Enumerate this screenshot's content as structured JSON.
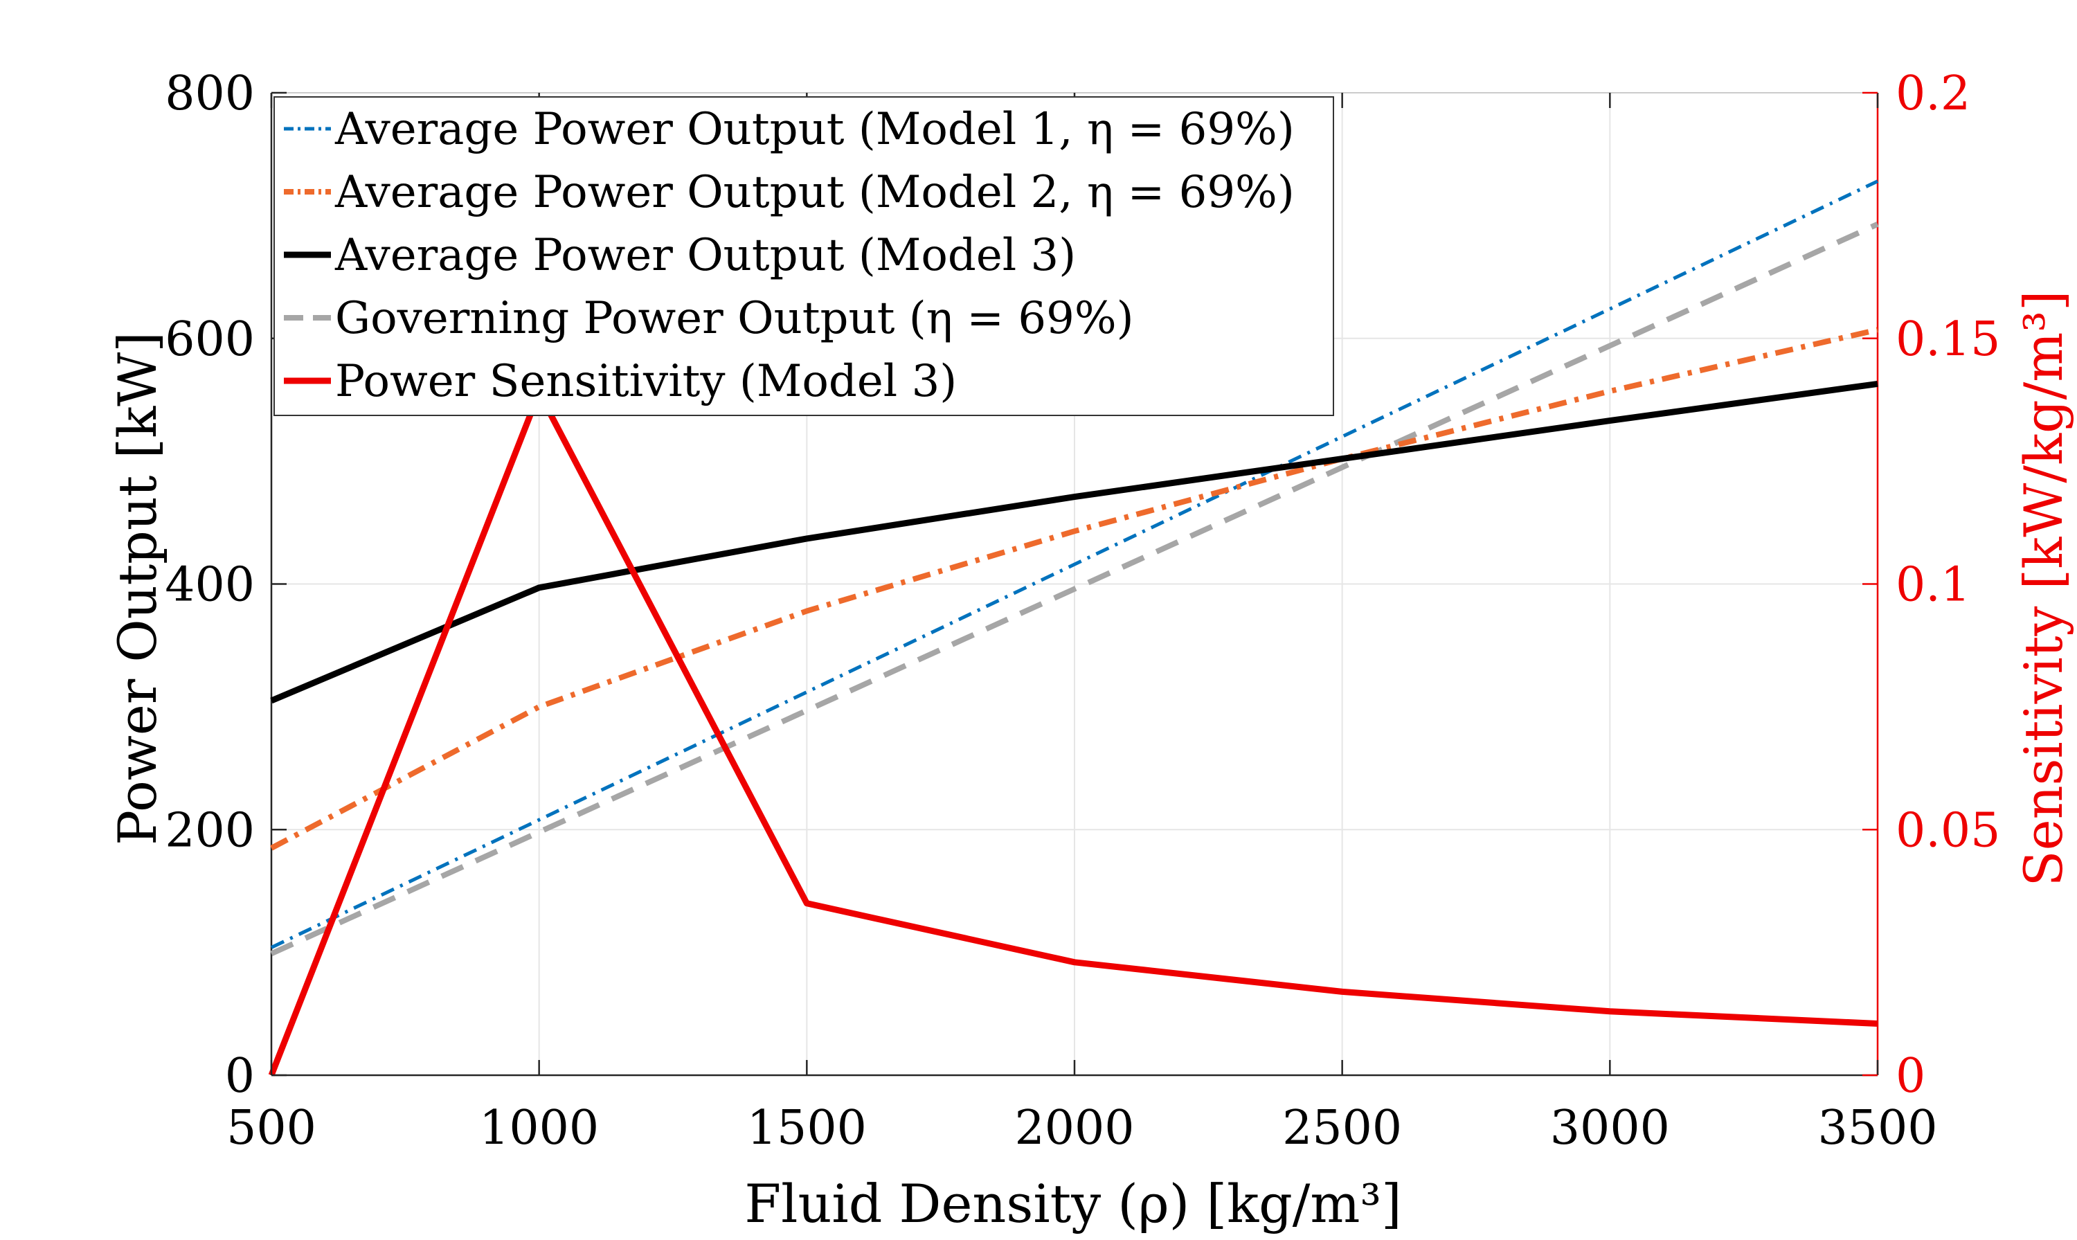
{
  "chart_data": {
    "type": "line",
    "xlabel": "Fluid Density (ρ) [kg/m³]",
    "ylabel_left": "Power Output [kW]",
    "ylabel_right": "Sensitivity [kW/kg/m³]",
    "xlim": [
      500,
      3500
    ],
    "ylim_left": [
      0,
      800
    ],
    "ylim_right": [
      0,
      0.2
    ],
    "x_ticks": [
      500,
      1000,
      1500,
      2000,
      2500,
      3000,
      3500
    ],
    "y_left_ticks": [
      0,
      200,
      400,
      600,
      800
    ],
    "y_right_ticks": [
      0,
      0.05,
      0.1,
      0.15,
      0.2
    ],
    "y_left_tick_labels": [
      "0",
      "200",
      "400",
      "600",
      "800"
    ],
    "y_right_tick_labels": [
      "0",
      "0.05",
      "0.1",
      "0.15",
      "0.2"
    ],
    "grid": true,
    "legend_position": "top-left",
    "x": [
      500,
      1000,
      1500,
      2000,
      2500,
      3000,
      3500
    ],
    "series": [
      {
        "name": "Average Power Output (Model 1, η = 69%)",
        "axis": "left",
        "color": "#0072BD",
        "style": "dashdot-thin",
        "values": [
          104,
          208,
          312,
          416,
          520,
          624,
          728
        ]
      },
      {
        "name": "Average Power Output (Model 2, η = 69%)",
        "axis": "left",
        "color": "#EE6A2C",
        "style": "dashdot-thick",
        "values": [
          185,
          300,
          378,
          443,
          502,
          557,
          607
        ]
      },
      {
        "name": "Average Power Output (Model 3)",
        "axis": "left",
        "color": "#000000",
        "style": "solid",
        "values": [
          305,
          397,
          437,
          471,
          502,
          533,
          563
        ]
      },
      {
        "name": "Governing Power Output (η = 69%)",
        "axis": "left",
        "color": "#A6A6A6",
        "style": "dashed",
        "values": [
          99,
          198,
          297,
          396,
          495,
          594,
          693
        ]
      },
      {
        "name": "Power Sensitivity (Model 3)",
        "axis": "right",
        "color": "#EE0000",
        "style": "solid",
        "values": [
          0,
          0.139,
          0.035,
          0.023,
          0.017,
          0.013,
          0.0105
        ]
      }
    ]
  }
}
